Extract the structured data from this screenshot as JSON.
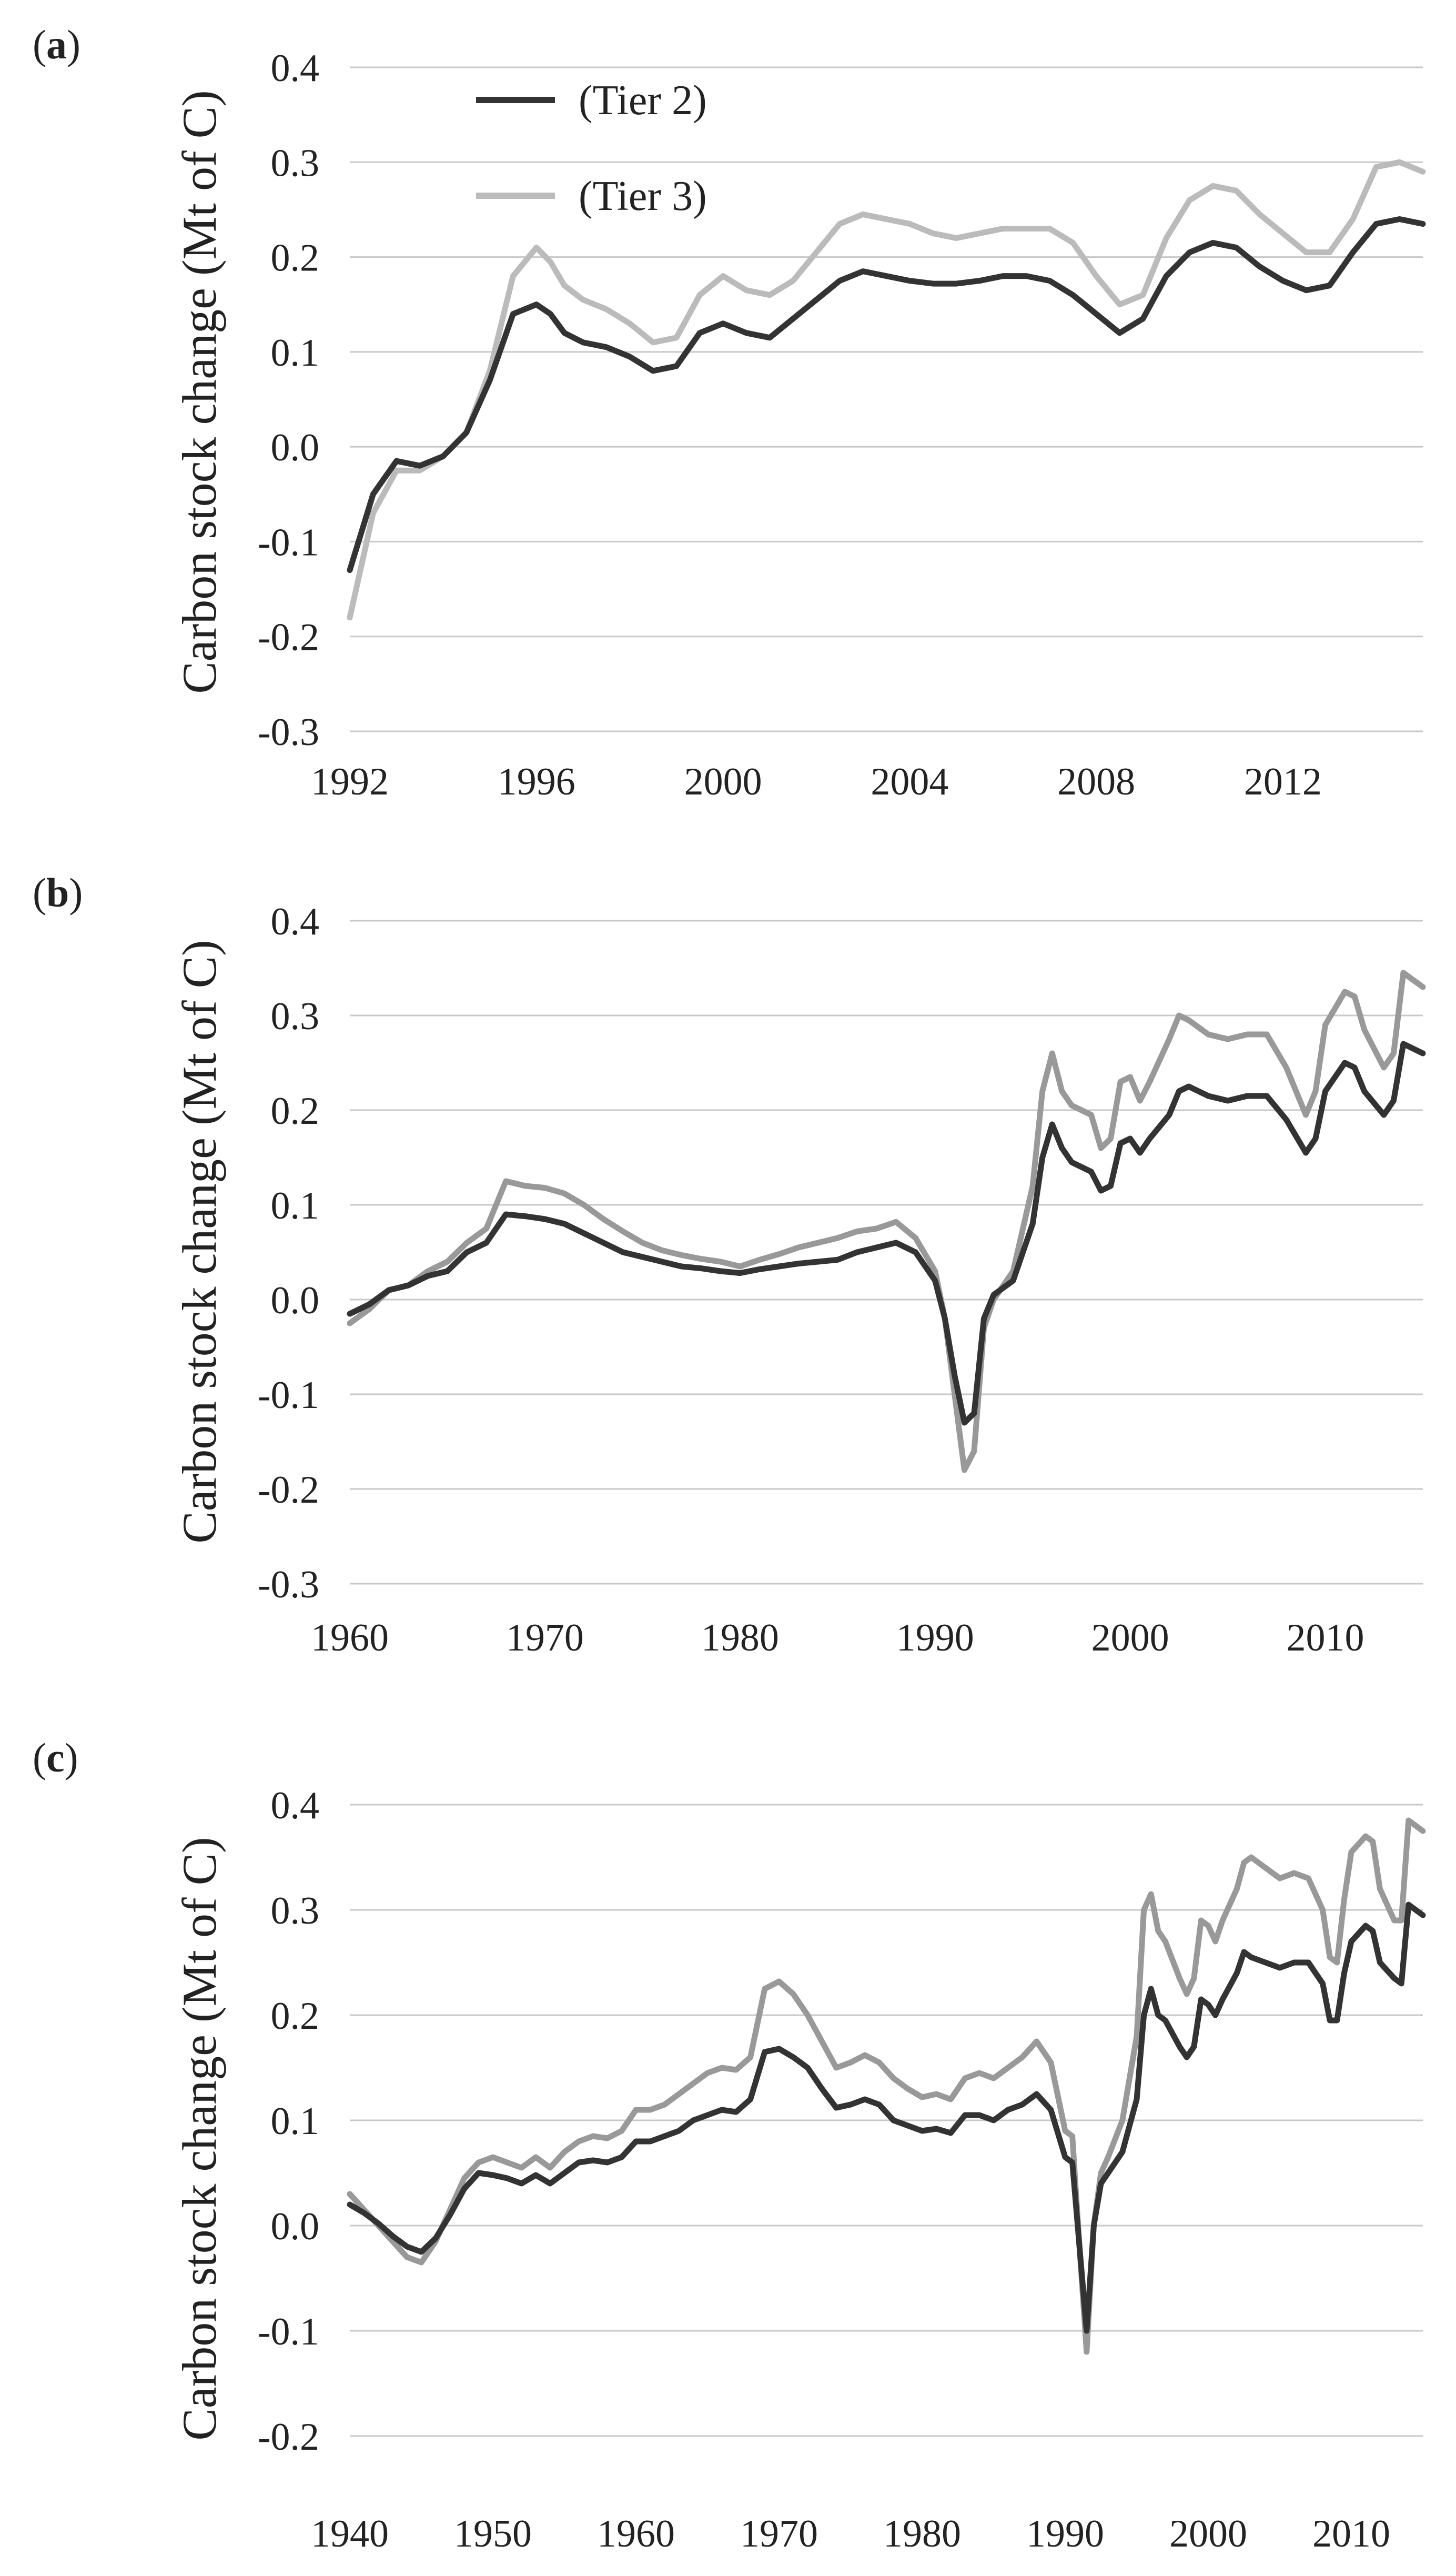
{
  "chart_data": [
    {
      "type": "line",
      "panel_label": "a",
      "title": "",
      "xlabel": "",
      "ylabel": "Carbon stock change (Mt of C)",
      "xlim": [
        1992,
        2015
      ],
      "ylim": [
        -0.3,
        0.4
      ],
      "xticks": [
        1992,
        1996,
        2000,
        2004,
        2008,
        2012
      ],
      "yticks": [
        -0.3,
        -0.2,
        -0.1,
        0.0,
        0.1,
        0.2,
        0.3,
        0.4
      ],
      "ytick_labels": [
        "-0.3",
        "-0.2",
        "-0.1",
        "0.0",
        "0.1",
        "0.2",
        "0.3",
        "0.4"
      ],
      "grid": true,
      "legend": "top-left",
      "series": [
        {
          "name": "(Tier 2)",
          "color": "#333333",
          "x": [
            1992,
            1992.5,
            1993,
            1993.5,
            1994,
            1994.5,
            1995,
            1995.5,
            1996,
            1996.3,
            1996.6,
            1997,
            1997.5,
            1998,
            1998.5,
            1999,
            1999.5,
            2000,
            2000.5,
            2001,
            2001.5,
            2002,
            2002.5,
            2003,
            2003.5,
            2004,
            2004.5,
            2005,
            2005.5,
            2006,
            2006.5,
            2007,
            2007.5,
            2008,
            2008.5,
            2009,
            2009.5,
            2010,
            2010.5,
            2011,
            2011.5,
            2012,
            2012.5,
            2013,
            2013.5,
            2014,
            2014.5,
            2015
          ],
          "values": [
            -0.13,
            -0.05,
            -0.015,
            -0.02,
            -0.01,
            0.015,
            0.07,
            0.14,
            0.15,
            0.14,
            0.12,
            0.11,
            0.105,
            0.095,
            0.08,
            0.085,
            0.12,
            0.13,
            0.12,
            0.115,
            0.135,
            0.155,
            0.175,
            0.185,
            0.18,
            0.175,
            0.172,
            0.172,
            0.175,
            0.18,
            0.18,
            0.175,
            0.16,
            0.14,
            0.12,
            0.135,
            0.18,
            0.205,
            0.215,
            0.21,
            0.19,
            0.175,
            0.165,
            0.17,
            0.205,
            0.235,
            0.24,
            0.235
          ]
        },
        {
          "name": "(Tier 3)",
          "color": "#bbbbbb",
          "x": [
            1992,
            1992.5,
            1993,
            1993.5,
            1994,
            1994.5,
            1995,
            1995.5,
            1996,
            1996.3,
            1996.6,
            1997,
            1997.5,
            1998,
            1998.5,
            1999,
            1999.5,
            2000,
            2000.5,
            2001,
            2001.5,
            2002,
            2002.5,
            2003,
            2003.5,
            2004,
            2004.5,
            2005,
            2005.5,
            2006,
            2006.5,
            2007,
            2007.5,
            2008,
            2008.5,
            2009,
            2009.5,
            2010,
            2010.5,
            2011,
            2011.5,
            2012,
            2012.5,
            2013,
            2013.5,
            2014,
            2014.5,
            2015
          ],
          "values": [
            -0.18,
            -0.07,
            -0.025,
            -0.025,
            -0.01,
            0.015,
            0.08,
            0.18,
            0.21,
            0.195,
            0.17,
            0.155,
            0.145,
            0.13,
            0.11,
            0.115,
            0.16,
            0.18,
            0.165,
            0.16,
            0.175,
            0.205,
            0.235,
            0.245,
            0.24,
            0.235,
            0.225,
            0.22,
            0.225,
            0.23,
            0.23,
            0.23,
            0.215,
            0.18,
            0.15,
            0.16,
            0.22,
            0.26,
            0.275,
            0.27,
            0.245,
            0.225,
            0.205,
            0.205,
            0.24,
            0.295,
            0.3,
            0.29
          ]
        }
      ]
    },
    {
      "type": "line",
      "panel_label": "b",
      "title": "",
      "xlabel": "",
      "ylabel": "Carbon stock change (Mt of C)",
      "xlim": [
        1960,
        2015
      ],
      "ylim": [
        -0.3,
        0.4
      ],
      "xticks": [
        1960,
        1970,
        1980,
        1990,
        2000,
        2010
      ],
      "yticks": [
        -0.3,
        -0.2,
        -0.1,
        0.0,
        0.1,
        0.2,
        0.3,
        0.4
      ],
      "ytick_labels": [
        "-0.3",
        "-0.2",
        "-0.1",
        "0.0",
        "0.1",
        "0.2",
        "0.3",
        "0.4"
      ],
      "grid": true,
      "legend": "none",
      "series": [
        {
          "name": "(Tier 2)",
          "color": "#333333",
          "x": [
            1960,
            1961,
            1962,
            1963,
            1964,
            1965,
            1966,
            1967,
            1968,
            1969,
            1970,
            1971,
            1972,
            1973,
            1974,
            1975,
            1976,
            1977,
            1978,
            1979,
            1980,
            1981,
            1982,
            1983,
            1984,
            1985,
            1986,
            1987,
            1988,
            1989,
            1990,
            1990.5,
            1991,
            1991.5,
            1992,
            1992.5,
            1993,
            1994,
            1995,
            1995.5,
            1996,
            1996.5,
            1997,
            1998,
            1998.5,
            1999,
            1999.5,
            2000,
            2000.5,
            2001,
            2002,
            2002.5,
            2003,
            2004,
            2005,
            2006,
            2007,
            2008,
            2009,
            2009.5,
            2010,
            2011,
            2011.5,
            2012,
            2013,
            2013.5,
            2014,
            2015
          ],
          "values": [
            -0.015,
            -0.005,
            0.01,
            0.015,
            0.025,
            0.03,
            0.05,
            0.06,
            0.09,
            0.088,
            0.085,
            0.08,
            0.07,
            0.06,
            0.05,
            0.045,
            0.04,
            0.035,
            0.033,
            0.03,
            0.028,
            0.032,
            0.035,
            0.038,
            0.04,
            0.042,
            0.05,
            0.055,
            0.06,
            0.05,
            0.02,
            -0.02,
            -0.08,
            -0.13,
            -0.12,
            -0.02,
            0.005,
            0.02,
            0.08,
            0.15,
            0.185,
            0.16,
            0.145,
            0.135,
            0.115,
            0.12,
            0.165,
            0.17,
            0.155,
            0.17,
            0.195,
            0.22,
            0.225,
            0.215,
            0.21,
            0.215,
            0.215,
            0.19,
            0.155,
            0.17,
            0.22,
            0.25,
            0.245,
            0.22,
            0.195,
            0.21,
            0.27,
            0.26
          ]
        },
        {
          "name": "(Tier 3)",
          "color": "#999999",
          "x": [
            1960,
            1961,
            1962,
            1963,
            1964,
            1965,
            1966,
            1967,
            1968,
            1969,
            1970,
            1971,
            1972,
            1973,
            1974,
            1975,
            1976,
            1977,
            1978,
            1979,
            1980,
            1981,
            1982,
            1983,
            1984,
            1985,
            1986,
            1987,
            1988,
            1989,
            1990,
            1990.5,
            1991,
            1991.5,
            1992,
            1992.5,
            1993,
            1994,
            1995,
            1995.5,
            1996,
            1996.5,
            1997,
            1998,
            1998.5,
            1999,
            1999.5,
            2000,
            2000.5,
            2001,
            2002,
            2002.5,
            2003,
            2004,
            2005,
            2006,
            2007,
            2008,
            2009,
            2009.5,
            2010,
            2011,
            2011.5,
            2012,
            2013,
            2013.5,
            2014,
            2015
          ],
          "values": [
            -0.025,
            -0.01,
            0.01,
            0.015,
            0.03,
            0.04,
            0.06,
            0.075,
            0.125,
            0.12,
            0.118,
            0.112,
            0.1,
            0.085,
            0.072,
            0.06,
            0.052,
            0.047,
            0.043,
            0.04,
            0.035,
            0.042,
            0.048,
            0.055,
            0.06,
            0.065,
            0.072,
            0.075,
            0.082,
            0.065,
            0.03,
            -0.02,
            -0.1,
            -0.18,
            -0.16,
            -0.03,
            0.0,
            0.03,
            0.12,
            0.22,
            0.26,
            0.22,
            0.205,
            0.195,
            0.16,
            0.17,
            0.23,
            0.235,
            0.21,
            0.23,
            0.275,
            0.3,
            0.295,
            0.28,
            0.275,
            0.28,
            0.28,
            0.245,
            0.195,
            0.22,
            0.29,
            0.325,
            0.32,
            0.285,
            0.245,
            0.26,
            0.345,
            0.33
          ]
        }
      ]
    },
    {
      "type": "line",
      "panel_label": "c",
      "title": "",
      "xlabel": "",
      "ylabel": "Carbon stock change (Mt of C)",
      "xlim": [
        1940,
        2015
      ],
      "ylim": [
        -0.2,
        0.4
      ],
      "xticks": [
        1940,
        1950,
        1960,
        1970,
        1980,
        1990,
        2000,
        2010
      ],
      "yticks": [
        -0.2,
        -0.1,
        0.0,
        0.1,
        0.2,
        0.3,
        0.4
      ],
      "ytick_labels": [
        "-0.2",
        "-0.1",
        "0.0",
        "0.1",
        "0.2",
        "0.3",
        "0.4"
      ],
      "grid": true,
      "legend": "none",
      "series": [
        {
          "name": "(Tier 2)",
          "color": "#333333",
          "x": [
            1940,
            1941,
            1942,
            1943,
            1944,
            1945,
            1946,
            1947,
            1948,
            1949,
            1950,
            1951,
            1952,
            1953,
            1954,
            1955,
            1956,
            1957,
            1958,
            1959,
            1960,
            1961,
            1962,
            1963,
            1964,
            1965,
            1966,
            1967,
            1968,
            1969,
            1970,
            1971,
            1972,
            1973,
            1974,
            1975,
            1976,
            1977,
            1978,
            1979,
            1980,
            1981,
            1982,
            1983,
            1984,
            1985,
            1986,
            1987,
            1988,
            1989,
            1990,
            1990.5,
            1991,
            1991.5,
            1992,
            1992.5,
            1993,
            1994,
            1995,
            1995.5,
            1996,
            1996.5,
            1997,
            1998,
            1998.5,
            1999,
            1999.5,
            2000,
            2000.5,
            2001,
            2002,
            2002.5,
            2003,
            2004,
            2005,
            2006,
            2007,
            2008,
            2008.5,
            2009,
            2009.5,
            2010,
            2011,
            2011.5,
            2012,
            2013,
            2013.5,
            2014,
            2015
          ],
          "values": [
            0.02,
            0.012,
            0.002,
            -0.01,
            -0.02,
            -0.025,
            -0.012,
            0.01,
            0.035,
            0.05,
            0.048,
            0.045,
            0.04,
            0.048,
            0.04,
            0.05,
            0.06,
            0.062,
            0.06,
            0.065,
            0.08,
            0.08,
            0.085,
            0.09,
            0.1,
            0.105,
            0.11,
            0.108,
            0.12,
            0.165,
            0.168,
            0.16,
            0.15,
            0.13,
            0.112,
            0.115,
            0.12,
            0.115,
            0.1,
            0.095,
            0.09,
            0.092,
            0.088,
            0.105,
            0.105,
            0.1,
            0.11,
            0.115,
            0.125,
            0.11,
            0.065,
            0.06,
            -0.02,
            -0.1,
            0.0,
            0.04,
            0.05,
            0.07,
            0.12,
            0.2,
            0.225,
            0.2,
            0.195,
            0.17,
            0.16,
            0.17,
            0.215,
            0.21,
            0.2,
            0.215,
            0.24,
            0.26,
            0.255,
            0.25,
            0.245,
            0.25,
            0.25,
            0.23,
            0.195,
            0.195,
            0.24,
            0.27,
            0.285,
            0.28,
            0.25,
            0.235,
            0.23,
            0.305,
            0.295
          ]
        },
        {
          "name": "(Tier 3)",
          "color": "#999999",
          "x": [
            1940,
            1941,
            1942,
            1943,
            1944,
            1945,
            1946,
            1947,
            1948,
            1949,
            1950,
            1951,
            1952,
            1953,
            1954,
            1955,
            1956,
            1957,
            1958,
            1959,
            1960,
            1961,
            1962,
            1963,
            1964,
            1965,
            1966,
            1967,
            1968,
            1969,
            1970,
            1971,
            1972,
            1973,
            1974,
            1975,
            1976,
            1977,
            1978,
            1979,
            1980,
            1981,
            1982,
            1983,
            1984,
            1985,
            1986,
            1987,
            1988,
            1989,
            1990,
            1990.5,
            1991,
            1991.5,
            1992,
            1992.5,
            1993,
            1994,
            1995,
            1995.5,
            1996,
            1996.5,
            1997,
            1998,
            1998.5,
            1999,
            1999.5,
            2000,
            2000.5,
            2001,
            2002,
            2002.5,
            2003,
            2004,
            2005,
            2006,
            2007,
            2008,
            2008.5,
            2009,
            2009.5,
            2010,
            2011,
            2011.5,
            2012,
            2013,
            2013.5,
            2014,
            2015
          ],
          "values": [
            0.03,
            0.015,
            0.0,
            -0.015,
            -0.03,
            -0.035,
            -0.015,
            0.015,
            0.045,
            0.06,
            0.065,
            0.06,
            0.055,
            0.065,
            0.055,
            0.07,
            0.08,
            0.085,
            0.083,
            0.09,
            0.11,
            0.11,
            0.115,
            0.125,
            0.135,
            0.145,
            0.15,
            0.148,
            0.16,
            0.225,
            0.232,
            0.22,
            0.2,
            0.175,
            0.15,
            0.155,
            0.162,
            0.155,
            0.14,
            0.13,
            0.122,
            0.125,
            0.12,
            0.14,
            0.145,
            0.14,
            0.15,
            0.16,
            0.175,
            0.155,
            0.09,
            0.085,
            -0.02,
            -0.12,
            0.0,
            0.05,
            0.065,
            0.1,
            0.18,
            0.3,
            0.315,
            0.28,
            0.27,
            0.235,
            0.22,
            0.235,
            0.29,
            0.285,
            0.27,
            0.29,
            0.32,
            0.345,
            0.35,
            0.34,
            0.33,
            0.335,
            0.33,
            0.3,
            0.255,
            0.25,
            0.31,
            0.355,
            0.37,
            0.365,
            0.32,
            0.29,
            0.29,
            0.385,
            0.375
          ]
        }
      ]
    }
  ]
}
